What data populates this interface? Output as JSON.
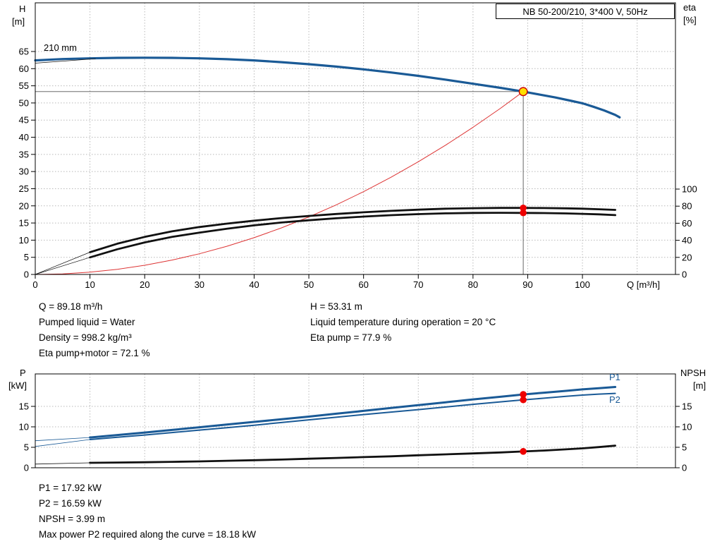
{
  "title_box": "NB 50-200/210, 3*400 V, 50Hz",
  "colors": {
    "curve_blue": "#1a5a96",
    "system_red": "#dd3333",
    "black": "#111111",
    "marker_red": "#ee0000",
    "duty_yellow": "#ffdf00",
    "grid": "#b9b9b9"
  },
  "labels": {
    "h_axis": [
      "H",
      "[m]"
    ],
    "eta_axis": [
      "eta",
      "[%]"
    ],
    "q_axis": "Q [m³/h]",
    "p_axis": [
      "P",
      "[kW]"
    ],
    "npsh_axis": [
      "NPSH",
      "[m]"
    ],
    "impeller": "210 mm",
    "p1": "P1",
    "p2": "P2"
  },
  "info_top": {
    "rows": [
      {
        "left": "Q = 89.18 m³/h",
        "right": "H = 53.31 m"
      },
      {
        "left": "Pumped liquid = Water",
        "right": "Liquid temperature during operation = 20 °C"
      },
      {
        "left": "Density = 998.2 kg/m³",
        "right": "Eta pump = 77.9 %"
      },
      {
        "left": "Eta pump+motor = 72.1 %",
        "right": ""
      }
    ]
  },
  "info_bottom": {
    "lines": [
      "P1 = 17.92 kW",
      "P2 = 16.59 kW",
      "NPSH = 3.99 m",
      "Max power P2 required along the curve = 18.18 kW"
    ]
  },
  "chart_data": [
    {
      "type": "line",
      "name": "qh-eta-chart",
      "title": "NB 50-200/210, 3*400 V, 50Hz",
      "xlabel": "Q [m³/h]",
      "ylabel_left": "H [m]",
      "ylabel_right": "eta [%]",
      "xlim": [
        0,
        117
      ],
      "ylim_left": [
        0,
        65
      ],
      "ylim_right": [
        0,
        100
      ],
      "grid": true,
      "x_ticks": [
        0,
        10,
        20,
        30,
        40,
        50,
        60,
        70,
        80,
        90,
        100
      ],
      "x_tick_labels": true,
      "y_left_ticks": [
        0,
        5,
        10,
        15,
        20,
        25,
        30,
        35,
        40,
        45,
        50,
        55,
        60,
        65
      ],
      "y_right_ticks": [
        0,
        20,
        40,
        60,
        80,
        100
      ],
      "duty_point": {
        "q": 89.18,
        "h": 53.31,
        "eta_pump": 77.9,
        "eta_pump_motor": 72.1
      },
      "series": [
        {
          "name": "head-210mm",
          "axis": "left",
          "color": "curve_blue",
          "width": 3.2,
          "points": [
            [
              0,
              62.4
            ],
            [
              5,
              62.8
            ],
            [
              10,
              63.0
            ],
            [
              15,
              63.15
            ],
            [
              20,
              63.2
            ],
            [
              25,
              63.15
            ],
            [
              30,
              63.0
            ],
            [
              35,
              62.75
            ],
            [
              40,
              62.4
            ],
            [
              45,
              61.9
            ],
            [
              50,
              61.3
            ],
            [
              55,
              60.6
            ],
            [
              60,
              59.8
            ],
            [
              65,
              58.9
            ],
            [
              70,
              57.9
            ],
            [
              75,
              56.8
            ],
            [
              80,
              55.6
            ],
            [
              85,
              54.4
            ],
            [
              89.18,
              53.31
            ],
            [
              92,
              52.5
            ],
            [
              95,
              51.6
            ],
            [
              98,
              50.6
            ],
            [
              100,
              49.9
            ],
            [
              102,
              48.9
            ],
            [
              104,
              47.8
            ],
            [
              106,
              46.5
            ],
            [
              106.8,
              45.8
            ]
          ]
        },
        {
          "name": "impeller-leader",
          "axis": "left",
          "color": "black",
          "width": 0.7,
          "points": [
            [
              0,
              61.6
            ],
            [
              11,
              62.9
            ]
          ]
        },
        {
          "name": "system-curve",
          "axis": "left",
          "color": "system_red",
          "width": 1,
          "points": [
            [
              0,
              0
            ],
            [
              5,
              0.17
            ],
            [
              10,
              0.67
            ],
            [
              15,
              1.51
            ],
            [
              20,
              2.68
            ],
            [
              25,
              4.19
            ],
            [
              30,
              6.03
            ],
            [
              35,
              8.21
            ],
            [
              40,
              10.72
            ],
            [
              45,
              13.57
            ],
            [
              50,
              16.76
            ],
            [
              55,
              20.28
            ],
            [
              60,
              24.13
            ],
            [
              65,
              28.32
            ],
            [
              70,
              32.84
            ],
            [
              75,
              37.7
            ],
            [
              80,
              42.9
            ],
            [
              85,
              48.43
            ],
            [
              89.18,
              53.31
            ]
          ]
        },
        {
          "name": "eta-pump",
          "axis": "right",
          "color": "black",
          "width": 2.8,
          "points": [
            [
              10,
              26
            ],
            [
              15,
              36
            ],
            [
              20,
              44
            ],
            [
              25,
              50.5
            ],
            [
              30,
              55.5
            ],
            [
              35,
              59.5
            ],
            [
              40,
              63
            ],
            [
              45,
              66
            ],
            [
              50,
              68.5
            ],
            [
              55,
              70.8
            ],
            [
              60,
              72.8
            ],
            [
              65,
              74.5
            ],
            [
              70,
              75.9
            ],
            [
              75,
              77
            ],
            [
              80,
              77.6
            ],
            [
              85,
              77.9
            ],
            [
              89.18,
              77.9
            ],
            [
              93,
              77.8
            ],
            [
              97,
              77.4
            ],
            [
              100,
              77
            ],
            [
              103,
              76.4
            ],
            [
              106,
              75.6
            ]
          ]
        },
        {
          "name": "eta-pump-ext",
          "axis": "right",
          "color": "black",
          "width": 0.7,
          "points": [
            [
              0,
              0
            ],
            [
              10,
              26
            ]
          ]
        },
        {
          "name": "eta-pump-motor",
          "axis": "right",
          "color": "black",
          "width": 2.8,
          "points": [
            [
              10,
              20
            ],
            [
              15,
              29.5
            ],
            [
              20,
              37.5
            ],
            [
              25,
              44
            ],
            [
              30,
              49
            ],
            [
              35,
              53.5
            ],
            [
              40,
              57.5
            ],
            [
              45,
              60.8
            ],
            [
              50,
              63.5
            ],
            [
              55,
              65.8
            ],
            [
              60,
              67.8
            ],
            [
              65,
              69.4
            ],
            [
              70,
              70.7
            ],
            [
              75,
              71.6
            ],
            [
              80,
              72.1
            ],
            [
              85,
              72.2
            ],
            [
              89.18,
              72.1
            ],
            [
              93,
              71.9
            ],
            [
              97,
              71.5
            ],
            [
              100,
              71
            ],
            [
              103,
              70.4
            ],
            [
              106,
              69.5
            ]
          ]
        },
        {
          "name": "eta-pump-motor-ext",
          "axis": "right",
          "color": "black",
          "width": 0.7,
          "points": [
            [
              0,
              0
            ],
            [
              10,
              20
            ]
          ]
        }
      ]
    },
    {
      "type": "line",
      "name": "power-npsh-chart",
      "xlabel": "",
      "ylabel_left": "P [kW]",
      "ylabel_right": "NPSH [m]",
      "xlim": [
        0,
        117
      ],
      "ylim_left": [
        0,
        22.9
      ],
      "ylim_right": [
        0,
        22.9
      ],
      "grid": true,
      "x_ticks": [
        0,
        10,
        20,
        30,
        40,
        50,
        60,
        70,
        80,
        90,
        100
      ],
      "x_tick_labels": false,
      "y_left_ticks": [
        0,
        5,
        10,
        15
      ],
      "y_right_ticks": [
        0,
        5,
        10,
        15
      ],
      "markers": [
        {
          "name": "p1-duty",
          "q": 89.18,
          "value": 17.92
        },
        {
          "name": "p2-duty",
          "q": 89.18,
          "value": 16.59
        },
        {
          "name": "npsh-duty",
          "q": 89.18,
          "value": 3.99
        }
      ],
      "series": [
        {
          "name": "p1",
          "axis": "left",
          "color": "curve_blue",
          "width": 3,
          "points": [
            [
              10,
              7.4
            ],
            [
              15,
              8.0
            ],
            [
              20,
              8.6
            ],
            [
              25,
              9.25
            ],
            [
              30,
              9.9
            ],
            [
              35,
              10.55
            ],
            [
              40,
              11.2
            ],
            [
              45,
              11.85
            ],
            [
              50,
              12.5
            ],
            [
              55,
              13.2
            ],
            [
              60,
              13.9
            ],
            [
              65,
              14.6
            ],
            [
              70,
              15.3
            ],
            [
              75,
              16.0
            ],
            [
              80,
              16.7
            ],
            [
              85,
              17.35
            ],
            [
              89.18,
              17.92
            ],
            [
              93,
              18.35
            ],
            [
              97,
              18.8
            ],
            [
              100,
              19.15
            ],
            [
              103,
              19.45
            ],
            [
              106,
              19.75
            ]
          ]
        },
        {
          "name": "p1-ext",
          "axis": "left",
          "color": "curve_blue",
          "width": 0.8,
          "points": [
            [
              0,
              6.6
            ],
            [
              10,
              7.4
            ]
          ]
        },
        {
          "name": "p2",
          "axis": "left",
          "color": "curve_blue",
          "width": 2,
          "points": [
            [
              10,
              6.9
            ],
            [
              15,
              7.45
            ],
            [
              20,
              8.0
            ],
            [
              25,
              8.6
            ],
            [
              30,
              9.2
            ],
            [
              35,
              9.8
            ],
            [
              40,
              10.4
            ],
            [
              45,
              11.05
            ],
            [
              50,
              11.7
            ],
            [
              55,
              12.35
            ],
            [
              60,
              13.0
            ],
            [
              65,
              13.6
            ],
            [
              70,
              14.2
            ],
            [
              75,
              14.85
            ],
            [
              80,
              15.5
            ],
            [
              85,
              16.1
            ],
            [
              89.18,
              16.59
            ],
            [
              93,
              17.0
            ],
            [
              97,
              17.45
            ],
            [
              100,
              17.75
            ],
            [
              103,
              18.0
            ],
            [
              106,
              18.18
            ]
          ]
        },
        {
          "name": "p2-ext",
          "axis": "left",
          "color": "curve_blue",
          "width": 0.8,
          "points": [
            [
              0,
              5.2
            ],
            [
              10,
              6.9
            ]
          ]
        },
        {
          "name": "npsh",
          "axis": "left",
          "color": "black",
          "width": 2.8,
          "points": [
            [
              10,
              1.2
            ],
            [
              15,
              1.27
            ],
            [
              20,
              1.35
            ],
            [
              25,
              1.45
            ],
            [
              30,
              1.55
            ],
            [
              35,
              1.7
            ],
            [
              40,
              1.85
            ],
            [
              45,
              2.0
            ],
            [
              50,
              2.2
            ],
            [
              55,
              2.4
            ],
            [
              60,
              2.6
            ],
            [
              65,
              2.8
            ],
            [
              70,
              3.05
            ],
            [
              75,
              3.27
            ],
            [
              80,
              3.5
            ],
            [
              85,
              3.75
            ],
            [
              89.18,
              3.99
            ],
            [
              93,
              4.2
            ],
            [
              97,
              4.5
            ],
            [
              100,
              4.75
            ],
            [
              103,
              5.05
            ],
            [
              106,
              5.4
            ]
          ]
        },
        {
          "name": "npsh-ext",
          "axis": "left",
          "color": "black",
          "width": 0.8,
          "points": [
            [
              0,
              0.9
            ],
            [
              10,
              1.2
            ]
          ]
        }
      ]
    }
  ]
}
